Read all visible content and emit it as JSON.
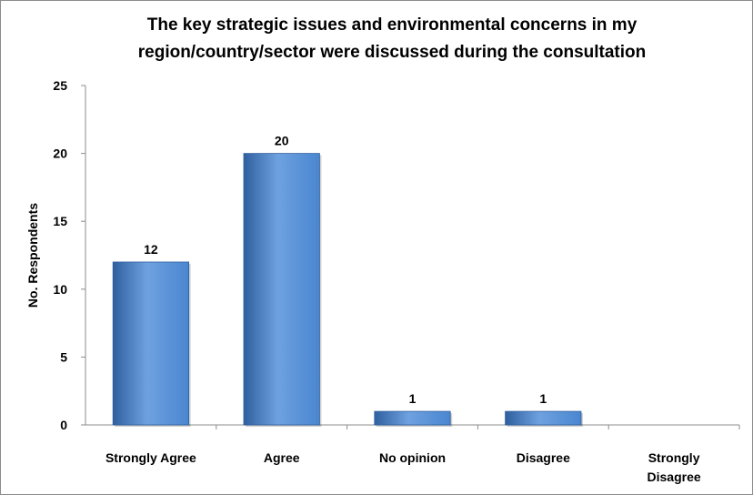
{
  "chart_data": {
    "type": "bar",
    "title_lines": [
      "The key strategic issues and environmental concerns in my",
      "region/country/sector were discussed during the consultation"
    ],
    "ylabel": "No. Respondents",
    "xlabel": "",
    "categories": [
      [
        "Strongly Agree"
      ],
      [
        "Agree"
      ],
      [
        "No opinion"
      ],
      [
        "Disagree"
      ],
      [
        "Strongly",
        "Disagree"
      ]
    ],
    "values": [
      12,
      20,
      1,
      1,
      0
    ],
    "data_labels": [
      "12",
      "20",
      "1",
      "1",
      ""
    ],
    "ylim": [
      0,
      25
    ],
    "yticks": [
      0,
      5,
      10,
      15,
      20,
      25
    ],
    "grid": false,
    "legend": false,
    "colors": {
      "bar": "#4a86d0",
      "bar_dark": "#2f5f9e",
      "bar_light": "#6ea1e0",
      "axis": "#8c8c8c",
      "text": "#000000"
    }
  }
}
